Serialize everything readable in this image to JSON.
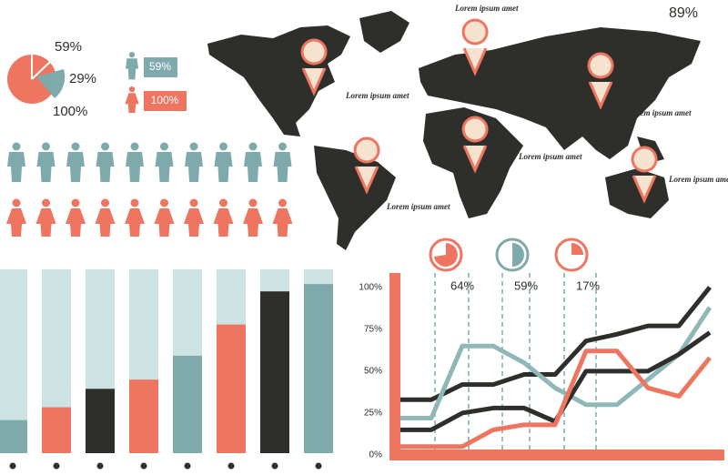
{
  "pie": {
    "labels": [
      "59%",
      "29%",
      "100%"
    ]
  },
  "gender": {
    "male": "59%",
    "female": "100%"
  },
  "map": {
    "title": "Lorem ipsum amet",
    "percent": "89%",
    "labels": [
      "Lorem ipsum amet",
      "Lorem ipsum amet",
      "Lorem ipsum amet",
      "Lorem ipsum amet",
      "Lorem ipsum amet"
    ]
  },
  "bar_chart": {
    "type": "bar",
    "ylim": [
      0,
      100
    ],
    "values": [
      18,
      25,
      35,
      40,
      53,
      70,
      88,
      92
    ],
    "colors": [
      "#7eaaab",
      "#ee7560",
      "#2e2e2a",
      "#ee7560",
      "#7eaaab",
      "#ee7560",
      "#2e2e2a",
      "#7eaaab"
    ]
  },
  "gauges": [
    "64%",
    "59%",
    "17%"
  ],
  "line_chart": {
    "type": "line",
    "xlim": [
      0,
      10
    ],
    "ylim": [
      0,
      108
    ],
    "yticks": [
      {
        "value": 0,
        "label": "0%"
      },
      {
        "value": 25,
        "label": "25%"
      },
      {
        "value": 50,
        "label": "50%"
      },
      {
        "value": 75,
        "label": "75%"
      },
      {
        "value": 100,
        "label": "100%"
      }
    ],
    "x": [
      0,
      1,
      2,
      3,
      4,
      5,
      6,
      7,
      8,
      9,
      10
    ],
    "series": [
      {
        "color": "#2e2e2a",
        "values": [
          33,
          33,
          42,
          42,
          48,
          48,
          68,
          72,
          77,
          77,
          100
        ]
      },
      {
        "color": "#8fb7b8",
        "values": [
          22,
          22,
          65,
          65,
          55,
          40,
          30,
          30,
          45,
          60,
          88
        ]
      },
      {
        "color": "#2e2e2a",
        "values": [
          15,
          15,
          25,
          28,
          28,
          20,
          50,
          50,
          50,
          60,
          73
        ]
      },
      {
        "color": "#ee7560",
        "values": [
          5,
          5,
          5,
          15,
          18,
          18,
          62,
          62,
          40,
          35,
          58
        ]
      }
    ]
  }
}
